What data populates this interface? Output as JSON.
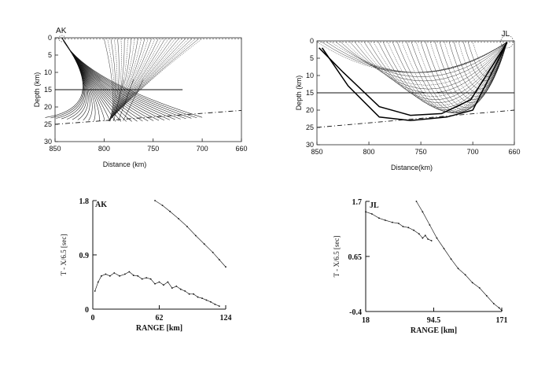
{
  "chart_data": [
    {
      "id": "ak-ray",
      "type": "line",
      "title": "",
      "station": "AK",
      "xlabel": "Distance (km)",
      "ylabel": "Depth (km)",
      "xlim": [
        850,
        660
      ],
      "ylim": [
        0,
        30
      ],
      "xticks": [
        850,
        800,
        750,
        700,
        660
      ],
      "yticks": [
        0,
        5,
        10,
        15,
        20,
        25,
        30
      ],
      "grid": false,
      "source_x": 843,
      "focus": {
        "x": 795,
        "y": 24
      },
      "down_x_range": [
        700,
        860
      ],
      "up_x_range": [
        700,
        800
      ],
      "moho": {
        "x": [
          850,
          660
        ],
        "y": [
          25,
          21
        ]
      },
      "conrad_depth": 15,
      "conrad_x_range": [
        850,
        720
      ]
    },
    {
      "id": "jl-ray",
      "type": "line",
      "title": "",
      "station": "JL",
      "xlabel": "Distance(km)",
      "ylabel": "Depth (km)",
      "xlim": [
        850,
        660
      ],
      "ylim": [
        0,
        30
      ],
      "xticks": [
        850,
        800,
        750,
        700,
        660
      ],
      "yticks": [
        0,
        5,
        10,
        15,
        20,
        25,
        30
      ],
      "grid": false,
      "source_x": 667,
      "ray_x_range": [
        700,
        850
      ],
      "bounds": [
        {
          "x": [
            667,
            700,
            725,
            760,
            790,
            820,
            845
          ],
          "y": [
            0.5,
            20,
            22,
            23,
            22,
            13,
            2
          ]
        },
        {
          "x": [
            667,
            702,
            730,
            760,
            790,
            825,
            848
          ],
          "y": [
            0.5,
            17,
            21,
            21.5,
            19,
            9,
            2
          ]
        }
      ],
      "moho": {
        "x": [
          850,
          660
        ],
        "y": [
          25,
          20
        ]
      },
      "conrad_depth": 15,
      "conrad_x_range": [
        850,
        660
      ]
    },
    {
      "id": "ak-tt",
      "type": "scatter",
      "title": "",
      "station": "AK",
      "xlabel": "RANGE [km]",
      "ylabel": "T - X/6.5 [sec]",
      "xlim": [
        0,
        124
      ],
      "ylim": [
        0,
        1.8
      ],
      "xticks": [
        0,
        62,
        124
      ],
      "yticks": [
        0,
        0.9,
        1.8
      ],
      "series": [
        {
          "x": [
            58,
            65,
            72,
            80,
            88,
            96,
            104,
            112,
            118,
            124
          ],
          "y": [
            1.8,
            1.72,
            1.62,
            1.5,
            1.37,
            1.22,
            1.08,
            0.94,
            0.82,
            0.7
          ]
        },
        {
          "x": [
            2,
            5,
            8,
            12,
            16,
            20,
            25,
            30,
            34,
            38,
            42,
            46,
            50,
            54,
            58,
            62,
            66,
            70,
            74,
            78,
            82,
            86,
            90,
            94,
            98,
            102,
            106,
            110,
            114,
            118
          ],
          "y": [
            0.3,
            0.45,
            0.55,
            0.58,
            0.55,
            0.6,
            0.55,
            0.58,
            0.62,
            0.56,
            0.55,
            0.5,
            0.52,
            0.5,
            0.42,
            0.45,
            0.4,
            0.45,
            0.35,
            0.38,
            0.33,
            0.3,
            0.25,
            0.25,
            0.2,
            0.18,
            0.15,
            0.12,
            0.08,
            0.05
          ]
        }
      ]
    },
    {
      "id": "jl-tt",
      "type": "scatter",
      "title": "",
      "station": "JL",
      "xlabel": "RANGE [km]",
      "ylabel": "T - X/6.5 [sec]",
      "xlim": [
        18,
        171
      ],
      "ylim": [
        -0.4,
        1.7
      ],
      "xticks": [
        18,
        94.5,
        171
      ],
      "xtick_labels": [
        "18",
        "94.5",
        "171"
      ],
      "yticks": [
        -0.4,
        0.65,
        1.7
      ],
      "series": [
        {
          "x": [
            18,
            25,
            33,
            40,
            48,
            55,
            60,
            66,
            72,
            78,
            82,
            85,
            88,
            92
          ],
          "y": [
            1.5,
            1.46,
            1.38,
            1.34,
            1.3,
            1.28,
            1.22,
            1.2,
            1.15,
            1.08,
            1.0,
            1.05,
            0.98,
            0.95
          ]
        },
        {
          "x": [
            75,
            82,
            90,
            98,
            106,
            114,
            122,
            130,
            138,
            146,
            154,
            162,
            168,
            171
          ],
          "y": [
            1.7,
            1.5,
            1.25,
            1.0,
            0.8,
            0.6,
            0.42,
            0.3,
            0.15,
            0.05,
            -0.1,
            -0.25,
            -0.33,
            -0.38
          ]
        }
      ]
    }
  ]
}
